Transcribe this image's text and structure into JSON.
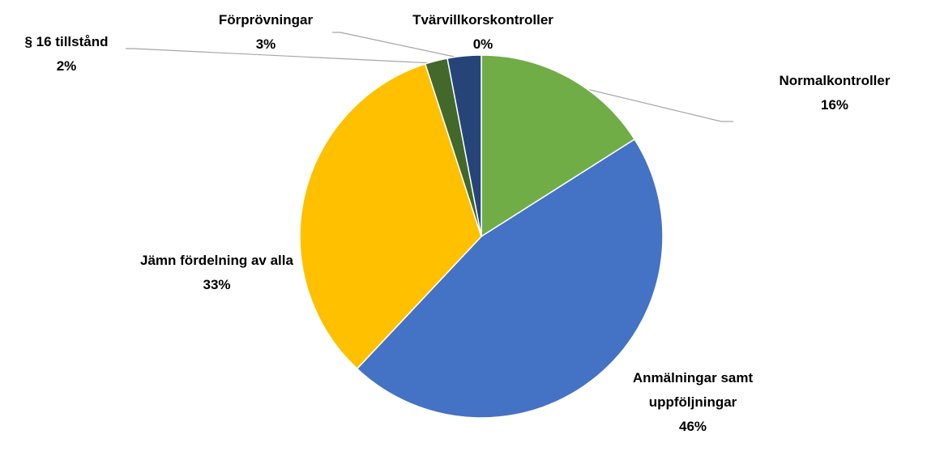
{
  "chart_data": {
    "type": "pie",
    "categories": [
      "Normalkontroller",
      "Anmälningar samt uppföljningar",
      "Jämn fördelning av alla",
      "§ 16 tillstånd",
      "Förprövningar",
      "Tvärvillkorskontroller"
    ],
    "values": [
      16,
      46,
      33,
      2,
      3,
      0
    ],
    "value_labels": [
      "16%",
      "46%",
      "33%",
      "2%",
      "3%",
      "0%"
    ],
    "colors": [
      "#70ad47",
      "#4472c4",
      "#ffc000",
      "#43682b",
      "#264478",
      "#9e480e"
    ]
  }
}
